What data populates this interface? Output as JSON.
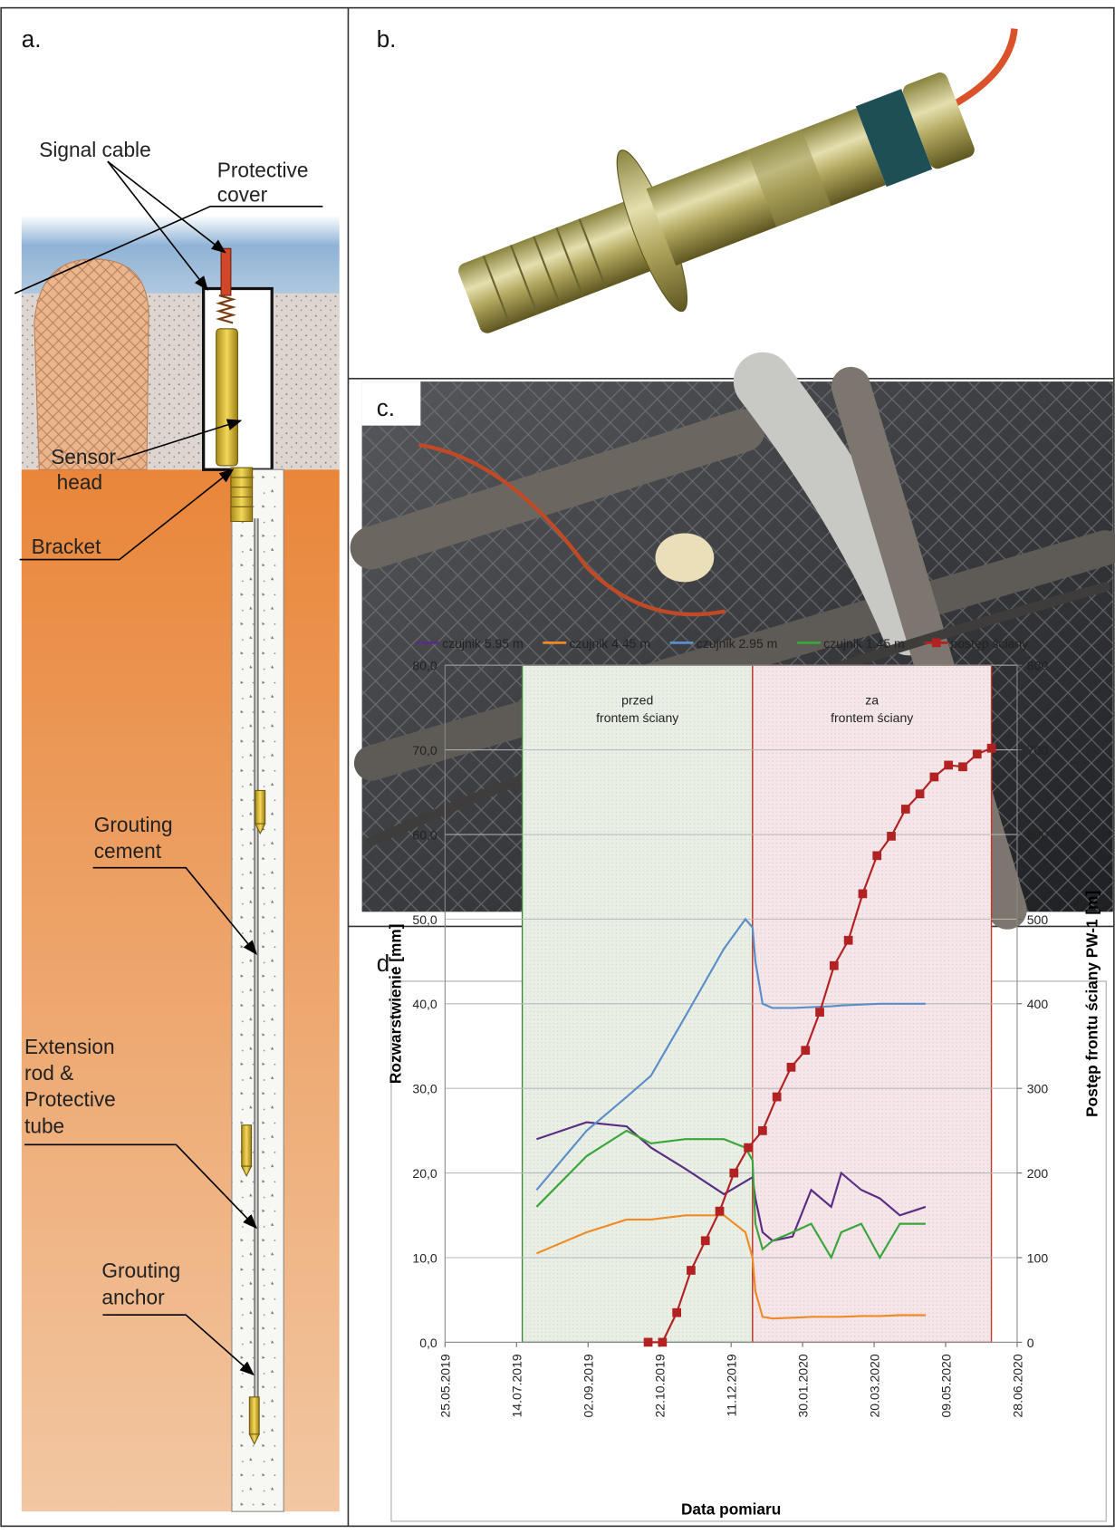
{
  "panels": {
    "a": "a.",
    "b": "b.",
    "c": "c.",
    "d": "d."
  },
  "panel_a": {
    "signal_cable": "Signal cable",
    "protective_cover": [
      "Protective",
      "cover"
    ],
    "sensor_head": [
      "Sensor",
      "head"
    ],
    "bracket": "Bracket",
    "grouting_cement": [
      "Grouting",
      "cement"
    ],
    "extension_rod": [
      "Extension",
      "rod &",
      "Protective",
      "tube"
    ],
    "grouting_anchor": [
      "Grouting",
      "anchor"
    ]
  },
  "chart_data": {
    "type": "line",
    "xlabel": "Data pomiaru",
    "ylabel": "Rozwarstwienie [mm]",
    "y2label": "Postęp frontu ściany PW-1 [m]",
    "x": [
      "28.07.2019",
      "01.09.2019",
      "29.09.2019",
      "16.10.2019",
      "09.11.2019",
      "06.12.2019",
      "21.12.2019",
      "26.12.2019",
      "28.12.2019",
      "02.01.2020",
      "09.01.2020",
      "23.01.2020",
      "05.02.2020",
      "19.02.2020",
      "26.02.2020",
      "11.03.2020",
      "24.03.2020",
      "07.04.2020",
      "25.04.2020"
    ],
    "xlim": [
      "25.05.2019",
      "28.06.2020"
    ],
    "xticks": [
      "25.05.2019",
      "14.07.2019",
      "02.09.2019",
      "22.10.2019",
      "11.12.2019",
      "30.01.2020",
      "20.03.2020",
      "09.05.2020",
      "28.06.2020"
    ],
    "ylim": [
      0,
      80
    ],
    "yticks": [
      {
        "value": 0,
        "label": "0,0"
      },
      {
        "value": 10,
        "label": "10,0"
      },
      {
        "value": 20,
        "label": "20,0"
      },
      {
        "value": 30,
        "label": "30,0"
      },
      {
        "value": 40,
        "label": "40,0"
      },
      {
        "value": 50,
        "label": "50,0"
      },
      {
        "value": 60,
        "label": "60,0"
      },
      {
        "value": 70,
        "label": "70,0"
      },
      {
        "value": 80,
        "label": "80,0"
      }
    ],
    "y2lim": [
      0,
      800
    ],
    "y2ticks": [
      0,
      100,
      200,
      300,
      400,
      500,
      600,
      700,
      800
    ],
    "grid": true,
    "legend": "top",
    "regions": [
      {
        "label": [
          "przed",
          "frontem ściany"
        ],
        "start": "18.07.2019",
        "end": "26.12.2019",
        "color": "#3a8a3a"
      },
      {
        "label": [
          "za",
          "frontem ściany"
        ],
        "start": "26.12.2019",
        "end": "10.06.2020",
        "color": "#c0392b"
      }
    ],
    "series": [
      {
        "name": "czujnik 5.95 m",
        "color": "#5b2c83",
        "values": [
          24,
          26,
          25.5,
          23,
          20.5,
          17.5,
          19,
          19.5,
          17,
          13,
          12,
          12.5,
          18,
          16,
          20,
          18,
          17,
          15,
          16
        ]
      },
      {
        "name": "czujnik 4.45 m",
        "color": "#f08a24",
        "values": [
          10.5,
          13,
          14.5,
          14.5,
          15,
          15,
          13,
          10,
          6,
          3,
          2.8,
          2.9,
          3,
          3,
          3,
          3.1,
          3.1,
          3.2,
          3.2
        ]
      },
      {
        "name": "czujnik 2.95 m",
        "color": "#5b8ec9",
        "values": [
          18,
          25,
          29,
          31.5,
          38.5,
          46.5,
          50,
          49,
          45,
          40,
          39.5,
          39.5,
          39.6,
          39.7,
          39.8,
          39.9,
          40,
          40,
          40
        ]
      },
      {
        "name": "czujnik 1.45 m",
        "color": "#3aa63a",
        "values": [
          16,
          22,
          25,
          23.5,
          24,
          24,
          23,
          21.5,
          14,
          11,
          12,
          13,
          14,
          10,
          13,
          14,
          10,
          14,
          14
        ]
      },
      {
        "name": "postęp ściany",
        "color": "#b22222",
        "axis": "y2",
        "marker": "square",
        "x": [
          "14.10.2019",
          "24.10.2019",
          "03.11.2019",
          "13.11.2019",
          "23.11.2019",
          "03.12.2019",
          "13.12.2019",
          "23.12.2019",
          "02.01.2020",
          "12.01.2020",
          "22.01.2020",
          "01.02.2020",
          "11.02.2020",
          "21.02.2020",
          "02.03.2020",
          "12.03.2020",
          "22.03.2020",
          "01.04.2020",
          "11.04.2020",
          "21.04.2020",
          "01.05.2020",
          "11.05.2020",
          "21.05.2020",
          "31.05.2020",
          "10.06.2020"
        ],
        "values": [
          0,
          0,
          35,
          85,
          120,
          155,
          200,
          230,
          250,
          290,
          325,
          345,
          390,
          445,
          475,
          530,
          575,
          598,
          630,
          648,
          668,
          682,
          680,
          695,
          702
        ]
      }
    ]
  }
}
